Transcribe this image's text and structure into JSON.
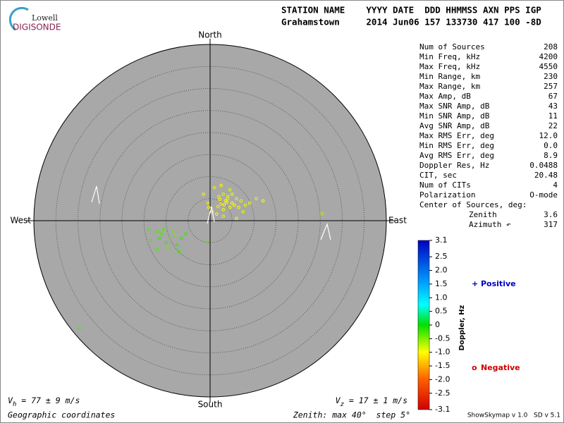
{
  "logo": {
    "small": "Lowell",
    "big": "DIGISONDE"
  },
  "header": {
    "labels": "STATION NAME    YYYY DATE  DDD HHMMSS AXN PPS IGP",
    "values": "Grahamstown     2014 Jun06 157 133730 417 100 -8D"
  },
  "stats": {
    "rows": [
      [
        "Num of Sources",
        "208"
      ],
      [
        "Min Freq, kHz",
        "4200"
      ],
      [
        "Max Freq, kHz",
        "4550"
      ],
      [
        "Min Range, km",
        "230"
      ],
      [
        "Max Range, km",
        "257"
      ],
      [
        "Max Amp, dB",
        "67"
      ],
      [
        "Max SNR Amp, dB",
        "43"
      ],
      [
        "Min SNR Amp, dB",
        "11"
      ],
      [
        "Avg SNR Amp, dB",
        "22"
      ],
      [
        "Max RMS Err, deg",
        "12.0"
      ],
      [
        "Min RMS Err, deg",
        "0.0"
      ],
      [
        "Avg RMS Err, deg",
        "8.9"
      ],
      [
        "Doppler Res, Hz",
        "0.0488"
      ],
      [
        "CIT, sec",
        "20.48"
      ],
      [
        "Num of CITs",
        "4"
      ],
      [
        "Polarization",
        "O-mode"
      ]
    ],
    "center_title": "Center of Sources, deg:",
    "center_rows": [
      [
        "Zenith",
        "3.6"
      ],
      [
        "Azimuth ↶",
        "317"
      ]
    ]
  },
  "chart_data": {
    "type": "skymap",
    "directions": {
      "north": "North",
      "south": "South",
      "east": "East",
      "west": "West"
    },
    "rlim": [
      0,
      40
    ],
    "rings": [
      5,
      10,
      15,
      20,
      25,
      30,
      35,
      40
    ],
    "x": [
      3.5,
      4,
      2.5,
      5,
      3,
      4.5,
      2,
      6,
      5.5,
      3.8,
      1,
      2.5,
      4.5,
      6.5,
      7,
      -0.3,
      0.5,
      1.5,
      3,
      6,
      8,
      9,
      -1.5,
      -0.5,
      3,
      4,
      2.2,
      5,
      1.8,
      3.2,
      7.5,
      10.5,
      12,
      -9,
      -10,
      -8,
      -11,
      -7.5,
      -12,
      -9.5,
      -13.5,
      -6.5,
      -10.5,
      -8.5,
      -12,
      -5.5,
      -14,
      -0.5,
      -7,
      -11.5,
      25.4,
      -29.6
    ],
    "y": [
      4.5,
      5,
      3.8,
      4,
      6,
      3,
      5.5,
      5,
      3.5,
      4.2,
      7.5,
      8,
      7,
      3,
      4.5,
      3,
      2,
      1.5,
      1,
      0.5,
      3.5,
      4,
      6,
      4,
      2.5,
      5.5,
      4.8,
      6,
      3.2,
      3.6,
      2,
      5,
      4.5,
      -4,
      -5,
      -3.5,
      -3,
      -5.5,
      -2.5,
      -6,
      -4.5,
      -4,
      -2,
      -2.5,
      -6.5,
      -3,
      -2,
      -4.5,
      -7,
      -4,
      1.6,
      -24.5
    ],
    "doppler": [
      -1,
      -0.9,
      -1.1,
      -1,
      -0.9,
      -1,
      -1.1,
      -0.9,
      -1,
      -1,
      -1.1,
      -1,
      -0.9,
      -1,
      -0.9,
      -1,
      -1.1,
      -1,
      -0.9,
      -1,
      -0.9,
      -1,
      -1,
      -1.1,
      -1,
      -0.9,
      -1,
      -1,
      -1.1,
      -1,
      -0.9,
      -0.9,
      -1,
      -0.3,
      -0.2,
      -0.4,
      -0.3,
      -0.2,
      -0.3,
      -0.4,
      -0.3,
      -0.2,
      -0.3,
      -0.4,
      -0.3,
      -0.2,
      -0.3,
      -0.4,
      -0.3,
      -0.2,
      -0.7,
      -0.3
    ],
    "colorbar": {
      "label": "Doppler, Hz",
      "lim": [
        -3.1,
        3.1
      ],
      "ticks": [
        3.1,
        2.5,
        {
          "value": 2,
          "label": "2.0"
        },
        1.5,
        {
          "value": 1,
          "label": "1.0"
        },
        0.5,
        0,
        -0.5,
        {
          "value": -1,
          "label": "-1.0"
        },
        -1.5,
        {
          "value": -2,
          "label": "-2.0"
        },
        -2.5,
        -3.1
      ]
    },
    "legend": {
      "positive": {
        "symbol": "+",
        "label": "Positive",
        "color": "#0000c0"
      },
      "negative": {
        "symbol": "o",
        "label": "Negative",
        "color": "#d00000"
      }
    },
    "vh": {
      "symbol": "V",
      "sub": "h",
      "text": " = 77 ± 9 m/s"
    },
    "vz": {
      "symbol": "V",
      "sub": "z",
      "text": " = 17 ± 1 m/s"
    },
    "coords": "Geographic coordinates",
    "zenith_note": "Zenith: max 40°  step 5°",
    "version": "ShowSkymap v 1.0   SD v 5.1"
  }
}
